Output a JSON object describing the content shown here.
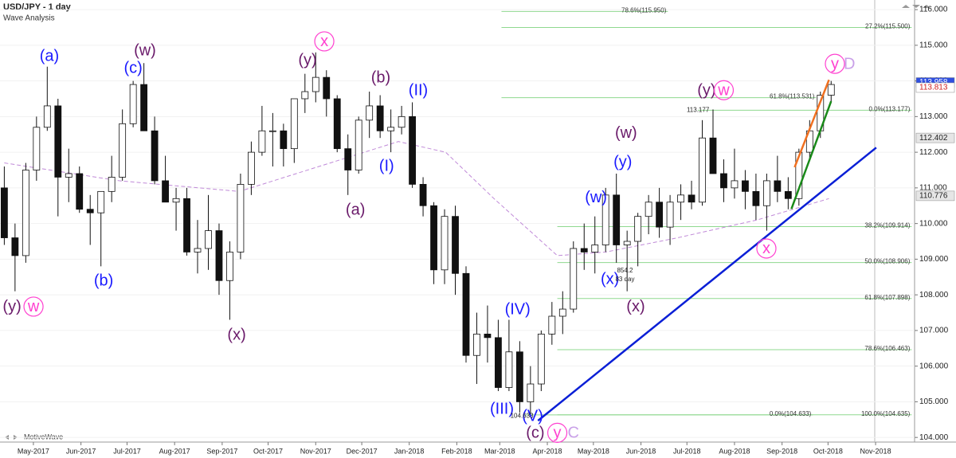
{
  "chart_data": {
    "type": "candlestick",
    "title": "USD/JPY - 1 day",
    "subtitle": "Wave Analysis",
    "watermark": "MotiveWave",
    "xlim": [
      -0.4,
      84.77
    ],
    "ylim": [
      103.87,
      116.27
    ],
    "xticks": [
      {
        "value": 2.71,
        "label": "May-2017"
      },
      {
        "value": 7.14,
        "label": "Jun-2017"
      },
      {
        "value": 11.43,
        "label": "Jul-2017"
      },
      {
        "value": 15.86,
        "label": "Aug-2017"
      },
      {
        "value": 20.29,
        "label": "Sep-2017"
      },
      {
        "value": 24.57,
        "label": "Oct-2017"
      },
      {
        "value": 29.0,
        "label": "Nov-2017"
      },
      {
        "value": 33.29,
        "label": "Dec-2017"
      },
      {
        "value": 37.71,
        "label": "Jan-2018"
      },
      {
        "value": 42.14,
        "label": "Feb-2018"
      },
      {
        "value": 46.14,
        "label": "Mar-2018"
      },
      {
        "value": 50.57,
        "label": "Apr-2018"
      },
      {
        "value": 54.86,
        "label": "May-2018"
      },
      {
        "value": 59.29,
        "label": "Jun-2018"
      },
      {
        "value": 63.57,
        "label": "Jul-2018"
      },
      {
        "value": 68.0,
        "label": "Aug-2018"
      },
      {
        "value": 72.43,
        "label": "Sep-2018"
      },
      {
        "value": 76.71,
        "label": "Oct-2018"
      },
      {
        "value": 81.14,
        "label": "Nov-2018"
      }
    ],
    "yticks": [
      {
        "value": 104,
        "label": "104.000"
      },
      {
        "value": 105,
        "label": "105.000"
      },
      {
        "value": 106,
        "label": "106.000"
      },
      {
        "value": 107,
        "label": "107.000"
      },
      {
        "value": 108,
        "label": "108.000"
      },
      {
        "value": 109,
        "label": "109.000"
      },
      {
        "value": 110,
        "label": "110.000"
      },
      {
        "value": 111,
        "label": "111.000"
      },
      {
        "value": 112,
        "label": "112.000"
      },
      {
        "value": 113,
        "label": "113.000"
      },
      {
        "value": 114,
        "label": "114.000"
      },
      {
        "value": 115,
        "label": "115.000"
      },
      {
        "value": 116,
        "label": "116.000"
      }
    ],
    "up_color": "#ffffff",
    "down_color": "#111111",
    "x": [
      0,
      1,
      2,
      3,
      4,
      5,
      6,
      7,
      8,
      9,
      10,
      11,
      12,
      13,
      14,
      15,
      16,
      17,
      18,
      19,
      20,
      21,
      22,
      23,
      24,
      25,
      26,
      27,
      28,
      29,
      30,
      31,
      32,
      33,
      34,
      35,
      36,
      37,
      38,
      39,
      40,
      41,
      42,
      43,
      44,
      45,
      46,
      47,
      48,
      49,
      50,
      51,
      52,
      53,
      54,
      55,
      56,
      57,
      58,
      59,
      60,
      61,
      62,
      63,
      64,
      65,
      66,
      67,
      68,
      69,
      70,
      71,
      72,
      73,
      74,
      75,
      76,
      77
    ],
    "open": [
      111.0,
      109.6,
      109.1,
      111.5,
      112.7,
      113.3,
      111.3,
      111.4,
      110.4,
      110.3,
      110.9,
      111.3,
      112.8,
      113.9,
      112.6,
      111.2,
      110.6,
      110.7,
      109.2,
      109.3,
      109.8,
      108.4,
      109.2,
      111.1,
      112.0,
      112.6,
      112.6,
      112.1,
      113.5,
      113.7,
      114.1,
      113.5,
      112.1,
      111.5,
      112.9,
      113.3,
      112.6,
      112.7,
      113.0,
      111.1,
      110.5,
      108.7,
      110.2,
      108.6,
      106.3,
      106.9,
      106.8,
      105.4,
      106.4,
      105.0,
      105.5,
      106.9,
      107.4,
      107.6,
      109.3,
      109.2,
      109.4,
      110.8,
      109.4,
      109.5,
      110.2,
      110.6,
      109.9,
      110.6,
      110.8,
      110.6,
      112.4,
      111.4,
      111.0,
      111.2,
      110.9,
      110.5,
      111.2,
      110.9,
      110.7,
      112.0,
      112.6,
      113.6
    ],
    "high": [
      111.6,
      110.0,
      111.7,
      113.0,
      114.4,
      113.5,
      112.1,
      111.6,
      110.8,
      110.9,
      111.9,
      113.2,
      114.0,
      114.5,
      113.0,
      111.9,
      111.0,
      111.0,
      110.1,
      110.8,
      110.0,
      109.5,
      111.4,
      112.3,
      113.3,
      113.1,
      112.8,
      113.5,
      114.2,
      114.8,
      114.3,
      113.6,
      112.5,
      113.0,
      113.7,
      113.6,
      113.2,
      113.3,
      113.4,
      111.3,
      110.6,
      110.4,
      110.5,
      108.8,
      107.5,
      107.7,
      107.3,
      107.3,
      106.7,
      106.0,
      107.0,
      107.8,
      108.1,
      109.5,
      110.0,
      110.2,
      111.0,
      111.4,
      109.8,
      110.3,
      110.8,
      111.0,
      110.8,
      111.1,
      111.2,
      112.9,
      113.2,
      111.8,
      112.1,
      111.5,
      111.4,
      111.4,
      111.9,
      111.3,
      112.1,
      112.9,
      113.7,
      114.0
    ],
    "low": [
      109.4,
      108.1,
      108.9,
      111.2,
      112.6,
      110.2,
      110.6,
      110.3,
      109.4,
      108.8,
      110.6,
      111.2,
      112.7,
      112.6,
      111.1,
      110.6,
      109.8,
      109.1,
      108.6,
      108.7,
      108.0,
      107.3,
      109.0,
      110.8,
      111.9,
      111.6,
      111.6,
      111.7,
      113.1,
      113.4,
      113.0,
      112.0,
      110.8,
      111.4,
      112.4,
      112.4,
      112.0,
      112.5,
      111.0,
      110.2,
      108.3,
      108.3,
      108.0,
      106.1,
      105.5,
      106.1,
      105.3,
      105.3,
      104.7,
      104.6,
      105.3,
      106.6,
      106.9,
      107.5,
      108.7,
      108.6,
      109.2,
      108.9,
      108.1,
      108.8,
      109.7,
      109.6,
      109.4,
      110.1,
      110.4,
      110.5,
      111.4,
      110.6,
      110.7,
      110.4,
      110.1,
      109.8,
      110.6,
      110.4,
      110.5,
      111.8,
      112.4,
      113.4
    ],
    "close": [
      109.6,
      109.1,
      111.5,
      112.7,
      113.3,
      111.3,
      111.4,
      110.4,
      110.3,
      110.9,
      111.3,
      112.8,
      113.9,
      112.6,
      111.2,
      110.6,
      110.7,
      109.2,
      109.3,
      109.8,
      108.4,
      109.2,
      111.1,
      112.0,
      112.6,
      112.6,
      112.1,
      113.5,
      113.7,
      114.1,
      113.5,
      112.1,
      111.5,
      112.9,
      113.3,
      112.6,
      112.7,
      113.0,
      111.1,
      110.5,
      108.7,
      110.2,
      108.6,
      106.3,
      106.9,
      106.8,
      105.4,
      106.4,
      105.0,
      105.5,
      106.9,
      107.4,
      107.6,
      109.3,
      109.2,
      109.4,
      110.8,
      109.4,
      109.5,
      110.2,
      110.6,
      109.9,
      110.6,
      110.8,
      110.6,
      112.4,
      111.4,
      111.0,
      111.2,
      110.9,
      110.5,
      111.2,
      110.9,
      110.7,
      112.0,
      112.6,
      113.6,
      113.9
    ],
    "ma": {
      "color": "#c08ad8",
      "x": [
        0,
        10.7,
        21.9,
        29.3,
        36.7,
        41.1,
        45.6,
        51.5,
        56.0,
        62.7,
        70.1,
        76.8
      ],
      "y": [
        111.7,
        111.2,
        110.9,
        111.6,
        112.3,
        112.0,
        110.7,
        109.1,
        109.2,
        109.6,
        110.1,
        110.7
      ]
    },
    "trend_lines": [
      {
        "color": "#0a1fd6",
        "x": [
          49.7,
          81.2
        ],
        "y": [
          104.47,
          112.13
        ]
      },
      {
        "color": "#f07020",
        "x": [
          73.6,
          76.8
        ],
        "y": [
          111.58,
          114.03
        ]
      },
      {
        "color": "#1a8a1a",
        "x": [
          73.3,
          77.0
        ],
        "y": [
          110.41,
          113.43
        ]
      }
    ],
    "fib_levels": [
      {
        "label": "78.6%(115.950)",
        "value": 115.95,
        "from": 46.3,
        "to": 61.8
      },
      {
        "label": "27.2%(115.500)",
        "value": 115.5,
        "from": 46.3,
        "to": 84.5
      },
      {
        "label": "61.8%(113.531)",
        "value": 113.531,
        "from": 46.3,
        "to": 75.6
      },
      {
        "label": "0.0%(113.177)",
        "value": 113.177,
        "from": 64.6,
        "to": 84.5
      },
      {
        "label": "38.2%(109.914)",
        "value": 109.914,
        "from": 51.5,
        "to": 84.5
      },
      {
        "label": "50.0%(108.906)",
        "value": 108.906,
        "from": 51.5,
        "to": 84.5
      },
      {
        "label": "61.8%(107.898)",
        "value": 107.898,
        "from": 51.5,
        "to": 84.5
      },
      {
        "label": "78.6%(106.463)",
        "value": 106.463,
        "from": 51.5,
        "to": 84.5
      },
      {
        "label": "100.0%(104.635)",
        "value": 104.635,
        "from": 51.5,
        "to": 84.5
      },
      {
        "label": "0.0%(104.633)",
        "value": 104.633,
        "from": 48.5,
        "to": 75.3
      }
    ],
    "fib_color": "#8fd88f",
    "price_markers": [
      {
        "value": 113.958,
        "fill": "#2f4fe0",
        "text_color": "#ffffff"
      },
      {
        "value": 113.813,
        "fill": "#ffffff",
        "text_color": "#d02020"
      },
      {
        "value": 112.402,
        "fill": "#e6e6e6",
        "text_color": "#222222"
      },
      {
        "value": 110.776,
        "fill": "#e6e6e6",
        "text_color": "#222222"
      }
    ],
    "waves": [
      {
        "text": "(y)",
        "color": "#6a1a6a",
        "x": 0.72,
        "y": 107.67,
        "circle": false
      },
      {
        "text": "w",
        "color": "#ff40d0",
        "x": 2.72,
        "y": 107.67,
        "circle": true
      },
      {
        "text": "(a)",
        "color": "#1a1aff",
        "x": 4.2,
        "y": 114.7,
        "circle": false
      },
      {
        "text": "(b)",
        "color": "#1a1aff",
        "x": 9.25,
        "y": 108.4,
        "circle": false
      },
      {
        "text": "(c)",
        "color": "#1a1aff",
        "x": 12.0,
        "y": 114.37,
        "circle": false
      },
      {
        "text": "(w)",
        "color": "#6a1a6a",
        "x": 13.1,
        "y": 114.86,
        "circle": false
      },
      {
        "text": "(x)",
        "color": "#6a1a6a",
        "x": 21.64,
        "y": 106.88,
        "circle": false
      },
      {
        "text": "(y)",
        "color": "#6a1a6a",
        "x": 28.24,
        "y": 114.59,
        "circle": false
      },
      {
        "text": "x",
        "color": "#ff40d0",
        "x": 29.8,
        "y": 115.11,
        "circle": true
      },
      {
        "text": "(a)",
        "color": "#6a1a6a",
        "x": 32.7,
        "y": 110.39,
        "circle": false
      },
      {
        "text": "(b)",
        "color": "#6a1a6a",
        "x": 35.06,
        "y": 114.1,
        "circle": false
      },
      {
        "text": "(I)",
        "color": "#1a1aff",
        "x": 35.6,
        "y": 111.62,
        "circle": false
      },
      {
        "text": "(II)",
        "color": "#1a1aff",
        "x": 38.55,
        "y": 113.74,
        "circle": false
      },
      {
        "text": "(III)",
        "color": "#1a1aff",
        "x": 46.34,
        "y": 104.8,
        "circle": false
      },
      {
        "text": "(IV)",
        "color": "#1a1aff",
        "x": 47.8,
        "y": 107.6,
        "circle": false
      },
      {
        "text": "(V)",
        "color": "#1a1aff",
        "x": 49.2,
        "y": 104.6,
        "circle": false
      },
      {
        "text": "(c)",
        "color": "#6a1a6a",
        "x": 49.45,
        "y": 104.13,
        "circle": false
      },
      {
        "text": "y",
        "color": "#ff40d0",
        "x": 51.5,
        "y": 104.13,
        "circle": true
      },
      {
        "text": "C",
        "color": "#c9a0e8",
        "x": 53.0,
        "y": 104.13,
        "circle": false
      },
      {
        "text": "(w)",
        "color": "#1a1aff",
        "x": 55.1,
        "y": 110.73,
        "circle": false
      },
      {
        "text": "(x)",
        "color": "#1a1aff",
        "x": 56.4,
        "y": 108.45,
        "circle": false
      },
      {
        "text": "(y)",
        "color": "#1a1aff",
        "x": 57.6,
        "y": 111.73,
        "circle": false
      },
      {
        "text": "(w)",
        "color": "#6a1a6a",
        "x": 57.9,
        "y": 112.54,
        "circle": false
      },
      {
        "text": "(x)",
        "color": "#6a1a6a",
        "x": 58.8,
        "y": 107.67,
        "circle": false
      },
      {
        "text": "(y)",
        "color": "#6a1a6a",
        "x": 65.4,
        "y": 113.74,
        "circle": false
      },
      {
        "text": "w",
        "color": "#ff40d0",
        "x": 67.0,
        "y": 113.74,
        "circle": true
      },
      {
        "text": "x",
        "color": "#ff40d0",
        "x": 70.97,
        "y": 109.3,
        "circle": true
      },
      {
        "text": "y",
        "color": "#ff40d0",
        "x": 77.35,
        "y": 114.48,
        "circle": true
      },
      {
        "text": "D",
        "color": "#c9a0e8",
        "x": 78.7,
        "y": 114.48,
        "circle": false
      }
    ],
    "notes": [
      {
        "text": "113.177",
        "x": 64.6,
        "y": 113.18
      },
      {
        "text": "104.633",
        "x": 48.2,
        "y": 104.6
      },
      {
        "text": "854.2",
        "x": 57.8,
        "y": 108.68
      },
      {
        "text": "83 day",
        "x": 57.8,
        "y": 108.43
      }
    ]
  }
}
